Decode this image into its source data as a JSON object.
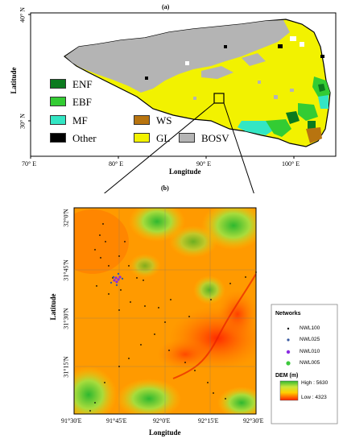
{
  "panel_a": {
    "tag": "(a)",
    "xlabel": "Longitude",
    "ylabel": "Latitude",
    "x_ticks": [
      "70° E",
      "80° E",
      "90° E",
      "100° E"
    ],
    "y_ticks": [
      "40° N",
      "30° N"
    ],
    "legend": [
      {
        "label": "ENF",
        "color": "#0b7a1e"
      },
      {
        "label": "EBF",
        "color": "#33cc33"
      },
      {
        "label": "MF",
        "color": "#33e6c4"
      },
      {
        "label": "WS",
        "color": "#b8740f"
      },
      {
        "label": "Other",
        "color": "#000000"
      },
      {
        "label": "GL",
        "color": "#f2f200"
      },
      {
        "label": "BOSV",
        "color": "#b4b4b4"
      }
    ]
  },
  "panel_b": {
    "tag": "(b)",
    "xlabel": "Longitude",
    "ylabel": "Latitude",
    "x_ticks": [
      "91°30'E",
      "91°45'E",
      "92°0'E",
      "92°15'E",
      "92°30'E"
    ],
    "y_ticks": [
      "32°0'N",
      "31°45'N",
      "31°30'N",
      "31°15'N"
    ],
    "networks_title": "Networks",
    "networks": [
      {
        "label": "NWL100",
        "color": "#000000",
        "size": 1.2
      },
      {
        "label": "NWL025",
        "color": "#3a5ba0",
        "size": 1.6
      },
      {
        "label": "NWL010",
        "color": "#8a2be2",
        "size": 2.2
      },
      {
        "label": "NWL005",
        "color": "#3cc83c",
        "size": 2.6
      }
    ],
    "dem_title": "DEM (m)",
    "dem_high": "High : 5630",
    "dem_low": "Low : 4323"
  }
}
